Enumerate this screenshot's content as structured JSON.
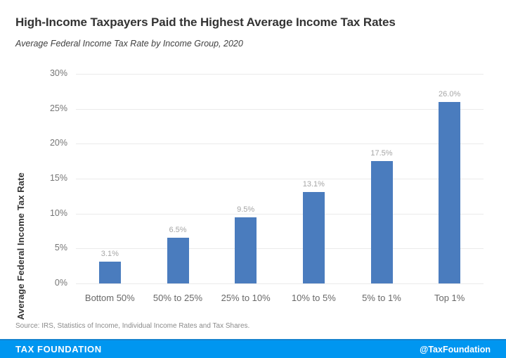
{
  "header": {
    "title": "High-Income Taxpayers Paid the Highest Average Income Tax Rates",
    "subtitle": "Average Federal Income Tax Rate by Income Group, 2020"
  },
  "chart_data": {
    "type": "bar",
    "title": "High-Income Taxpayers Paid the Highest Average Income Tax Rates",
    "subtitle": "Average Federal Income Tax Rate by Income Group, 2020",
    "categories": [
      "Bottom 50%",
      "50% to 25%",
      "25% to 10%",
      "10% to 5%",
      "5% to 1%",
      "Top 1%"
    ],
    "values": [
      3.1,
      6.5,
      9.5,
      13.1,
      17.5,
      26.0
    ],
    "value_labels": [
      "3.1%",
      "6.5%",
      "9.5%",
      "13.1%",
      "17.5%",
      "26.0%"
    ],
    "xlabel": "",
    "ylabel": "Average Federal Income Tax Rate",
    "ylim": [
      0,
      30
    ],
    "ytick_step": 5,
    "ytick_suffix": "%",
    "grid": true,
    "legend": false,
    "bar_color": "#4a7cbe",
    "gridline_color": "#ebebeb",
    "value_label_color": "#a6a6a6"
  },
  "source": {
    "text": "Source: IRS, Statistics of Income, Individual Income Rates and Tax Shares."
  },
  "footer": {
    "brand": "TAX FOUNDATION",
    "handle": "@TaxFoundation",
    "bg_color": "#0096f0"
  }
}
